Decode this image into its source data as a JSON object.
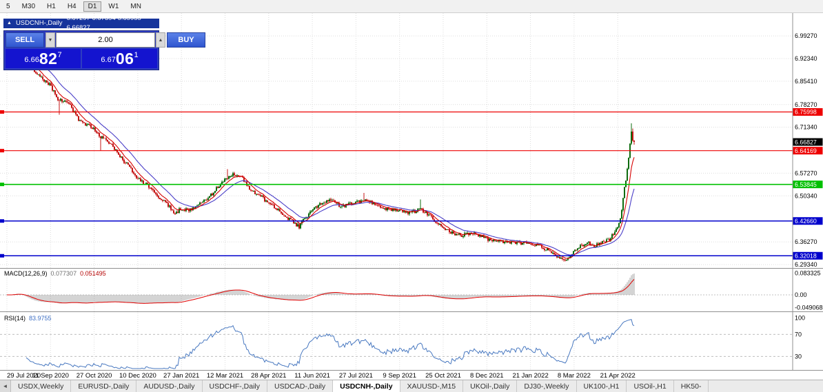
{
  "toolbar": {
    "timeframes": [
      "5",
      "M30",
      "H1",
      "H4",
      "D1",
      "W1",
      "MN"
    ],
    "active": "D1"
  },
  "chart_header": {
    "collapse_icon": "▲",
    "symbol": "USDCNH-,Daily",
    "ohlc": "6.67297 6.67394 6.65955 6.66827"
  },
  "trade_panel": {
    "sell_label": "SELL",
    "buy_label": "BUY",
    "volume": "2.00",
    "volume_down_icon": "▼",
    "volume_up_icon": "▲",
    "sell_price": {
      "small": "6.66",
      "big": "82",
      "sup": "7"
    },
    "buy_price": {
      "small": "6.67",
      "big": "06",
      "sup": "1"
    }
  },
  "chart_data": {
    "type": "candlestick",
    "symbol": "USDCNH-,Daily",
    "x_labels": [
      "29 Jul 2020",
      "11 Sep 2020",
      "27 Oct 2020",
      "10 Dec 2020",
      "27 Jan 2021",
      "12 Mar 2021",
      "28 Apr 2021",
      "11 Jun 2021",
      "27 Jul 2021",
      "9 Sep 2021",
      "25 Oct 2021",
      "8 Dec 2021",
      "21 Jan 2022",
      "8 Mar 2022",
      "21 Apr 2022"
    ],
    "y_range": [
      6.287,
      7.054
    ],
    "price_grid_labels": [
      "6.99270",
      "6.92340",
      "6.85410",
      "6.78270",
      "6.71340",
      "6.57270",
      "6.50340",
      "6.36270",
      "6.29340"
    ],
    "current_price": {
      "label": "6.66827",
      "value": 6.66827,
      "bg": "#000000"
    },
    "h_lines": [
      {
        "label": "6.75998",
        "value": 6.75998,
        "color": "#ee0000",
        "width": 1.2
      },
      {
        "label": "6.64169",
        "value": 6.64169,
        "color": "#ee0000",
        "width": 1.2
      },
      {
        "label": "6.53845",
        "value": 6.53845,
        "color": "#00c000",
        "width": 1.6
      },
      {
        "label": "6.42660",
        "value": 6.4266,
        "color": "#0000cc",
        "width": 1.6
      },
      {
        "label": "6.32018",
        "value": 6.32018,
        "color": "#0000cc",
        "width": 1.6
      }
    ],
    "last_candle": {
      "o": 6.67297,
      "h": 6.67394,
      "l": 6.65955,
      "c": 6.66827
    },
    "price_anchors": [
      [
        0,
        6.965
      ],
      [
        7,
        6.992
      ],
      [
        17,
        6.9
      ],
      [
        25,
        6.862
      ],
      [
        31,
        6.845
      ],
      [
        37,
        6.8
      ],
      [
        45,
        6.785
      ],
      [
        52,
        6.735
      ],
      [
        63,
        6.71
      ],
      [
        67,
        6.685
      ],
      [
        75,
        6.665
      ],
      [
        82,
        6.625
      ],
      [
        90,
        6.585
      ],
      [
        95,
        6.555
      ],
      [
        102,
        6.535
      ],
      [
        110,
        6.5
      ],
      [
        117,
        6.475
      ],
      [
        122,
        6.445
      ],
      [
        126,
        6.465
      ],
      [
        132,
        6.458
      ],
      [
        140,
        6.48
      ],
      [
        147,
        6.5
      ],
      [
        155,
        6.54
      ],
      [
        158,
        6.55
      ],
      [
        165,
        6.572
      ],
      [
        170,
        6.56
      ],
      [
        177,
        6.52
      ],
      [
        185,
        6.5
      ],
      [
        190,
        6.48
      ],
      [
        197,
        6.462
      ],
      [
        205,
        6.432
      ],
      [
        212,
        6.408
      ],
      [
        217,
        6.44
      ],
      [
        221,
        6.458
      ],
      [
        227,
        6.478
      ],
      [
        235,
        6.49
      ],
      [
        242,
        6.472
      ],
      [
        253,
        6.482
      ],
      [
        260,
        6.492
      ],
      [
        267,
        6.478
      ],
      [
        275,
        6.462
      ],
      [
        285,
        6.458
      ],
      [
        292,
        6.452
      ],
      [
        300,
        6.462
      ],
      [
        307,
        6.44
      ],
      [
        316,
        6.405
      ],
      [
        322,
        6.392
      ],
      [
        330,
        6.382
      ],
      [
        337,
        6.39
      ],
      [
        348,
        6.372
      ],
      [
        362,
        6.362
      ],
      [
        380,
        6.358
      ],
      [
        387,
        6.348
      ],
      [
        395,
        6.332
      ],
      [
        402,
        6.312
      ],
      [
        407,
        6.308
      ],
      [
        411,
        6.33
      ],
      [
        417,
        6.352
      ],
      [
        422,
        6.36
      ],
      [
        427,
        6.35
      ],
      [
        432,
        6.362
      ],
      [
        437,
        6.372
      ],
      [
        441,
        6.39
      ],
      [
        445,
        6.43
      ],
      [
        447,
        6.5
      ],
      [
        449,
        6.555
      ],
      [
        451,
        6.615
      ],
      [
        453,
        6.7
      ],
      [
        454,
        6.676
      ],
      [
        455,
        6.66827
      ]
    ],
    "wick_events": [
      {
        "i": 38,
        "low": 6.752
      },
      {
        "i": 68,
        "low": 6.642
      },
      {
        "i": 160,
        "high": 6.585
      },
      {
        "i": 259,
        "high": 6.512
      },
      {
        "i": 300,
        "high": 6.492
      },
      {
        "i": 404,
        "low": 6.303
      },
      {
        "i": 453,
        "high": 6.725
      },
      {
        "i": 454,
        "high": 6.709
      }
    ],
    "colors": {
      "bull": "#0e6b0e",
      "bear": "#c41414",
      "ma_fast": "#d60000",
      "ma_slow": "#4a3ec8",
      "macd_hist": "#a8a8a8",
      "macd_signal": "#e00000",
      "rsi": "#4878c0",
      "grid": "#dcdcdc"
    },
    "macd": {
      "label": "MACD(12,26,9)",
      "value_main": "0.077307",
      "value_signal": "0.051495",
      "scale_labels": [
        {
          "text": "0.083325",
          "value": 0.083325
        },
        {
          "text": "0.00",
          "value": 0
        },
        {
          "text": "-0.049068",
          "value": -0.049068
        }
      ]
    },
    "rsi": {
      "label": "RSI(14)",
      "value": "83.9755",
      "levels": [
        {
          "text": "100",
          "value": 100
        },
        {
          "text": "70",
          "value": 70
        },
        {
          "text": "30",
          "value": 30
        }
      ]
    }
  },
  "tabs": {
    "scroll_left_icon": "◄",
    "items": [
      "USDX,Weekly",
      "EURUSD-,Daily",
      "AUDUSD-,Daily",
      "USDCHF-,Daily",
      "USDCAD-,Daily",
      "USDCNH-,Daily",
      "XAUUSD-,M15",
      "UKOil-,Daily",
      "DJ30-,Weekly",
      "UK100-,H1",
      "USOil-,H1",
      "HK50-"
    ],
    "active": "USDCNH-,Daily"
  }
}
